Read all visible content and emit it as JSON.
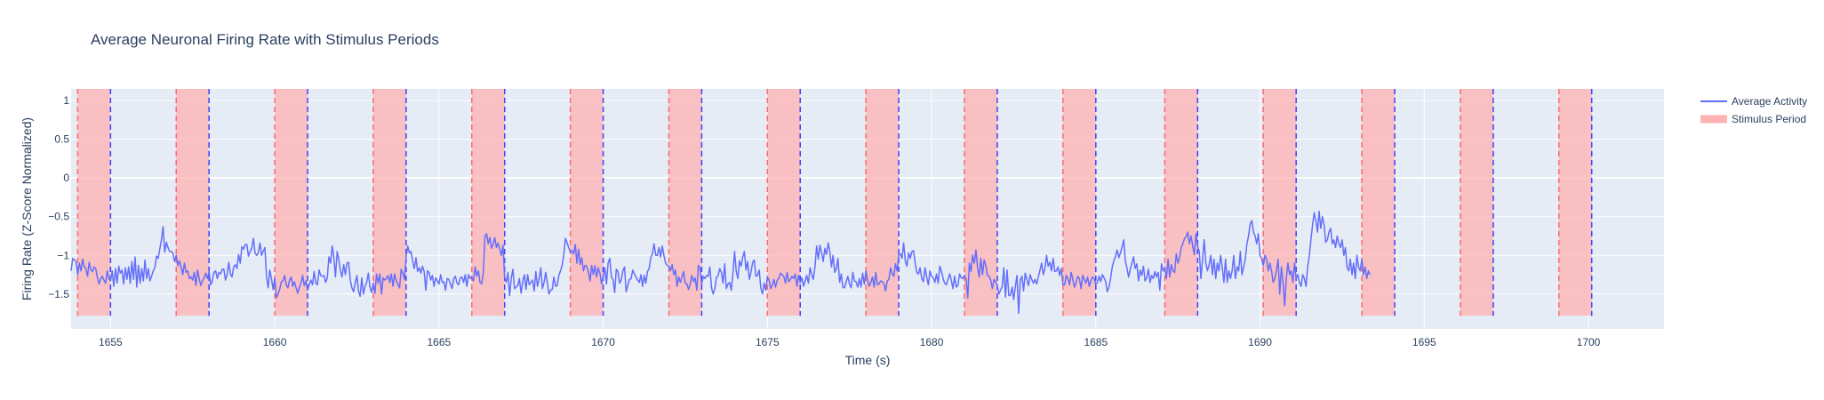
{
  "colors": {
    "plot_bg": "#e5ecf6",
    "grid": "#ffffff",
    "line": "#636efa",
    "stimulus_fill": "#ffb2b2",
    "onset_line": "#ff6b6b",
    "offset_line": "#3f3fff",
    "text": "#2a3f5f"
  },
  "chart_data": {
    "type": "line",
    "title": "Average Neuronal Firing Rate with Stimulus Periods",
    "xlabel": "Time (s)",
    "ylabel": "Firing Rate (Z-Score Normalized)",
    "xlim": [
      1653.8,
      1702.3
    ],
    "ylim": [
      -1.95,
      1.15
    ],
    "x_ticks": [
      1655,
      1660,
      1665,
      1670,
      1675,
      1680,
      1685,
      1690,
      1695,
      1700
    ],
    "y_ticks": [
      -1.5,
      -1,
      -0.5,
      0,
      0.5,
      1
    ],
    "y_tick_labels": [
      "−1.5",
      "−1",
      "−0.5",
      "0",
      "0.5",
      "1"
    ],
    "grid": true,
    "legend_position": "top-right",
    "legend": [
      "Average Activity",
      "Stimulus Period"
    ],
    "stimulus_periods": [
      [
        1654.0,
        1655.0
      ],
      [
        1657.0,
        1658.0
      ],
      [
        1660.0,
        1661.0
      ],
      [
        1663.0,
        1664.0
      ],
      [
        1666.0,
        1667.0
      ],
      [
        1669.0,
        1670.0
      ],
      [
        1672.0,
        1673.0
      ],
      [
        1675.0,
        1676.0
      ],
      [
        1678.0,
        1679.0
      ],
      [
        1681.0,
        1682.0
      ],
      [
        1684.0,
        1685.0
      ],
      [
        1687.1,
        1688.1
      ],
      [
        1690.1,
        1691.1
      ],
      [
        1693.1,
        1694.1
      ],
      [
        1696.1,
        1697.1
      ],
      [
        1699.1,
        1700.1
      ]
    ],
    "stimulus_y_range": [
      -1.78,
      1.15
    ],
    "series": [
      {
        "name": "Average Activity",
        "x_start": 1653.8,
        "x_step": 0.05,
        "values": [
          -1.2,
          -1.04,
          -1.06,
          -1.08,
          -1.25,
          -1.1,
          -1.2,
          -1.05,
          -1.15,
          -1.17,
          -1.27,
          -1.09,
          -1.19,
          -1.21,
          -1.15,
          -1.17,
          -1.29,
          -1.37,
          -1.3,
          -1.27,
          -1.32,
          -1.36,
          -1.2,
          -1.3,
          -1.33,
          -1.2,
          -1.4,
          -1.17,
          -1.36,
          -1.14,
          -1.23,
          -1.19,
          -1.37,
          -1.16,
          -1.31,
          -1.15,
          -1.36,
          -1.08,
          -1.31,
          -1.02,
          -1.41,
          -1.13,
          -1.36,
          -1.17,
          -1.33,
          -1.06,
          -1.3,
          -1.17,
          -1.33,
          -1.27,
          -1.2,
          -1.16,
          -1.01,
          -1.04,
          -0.92,
          -0.8,
          -0.63,
          -0.96,
          -0.83,
          -0.9,
          -0.95,
          -0.95,
          -0.97,
          -1.08,
          -1.0,
          -1.13,
          -1.07,
          -1.16,
          -1.25,
          -1.1,
          -1.22,
          -1.2,
          -1.3,
          -1.28,
          -1.32,
          -1.22,
          -1.39,
          -1.19,
          -1.3,
          -1.39,
          -1.33,
          -1.29,
          -1.23,
          -1.3,
          -1.21,
          -1.38,
          -1.33,
          -1.22,
          -1.2,
          -1.3,
          -1.22,
          -1.24,
          -1.18,
          -1.18,
          -1.32,
          -1.25,
          -1.09,
          -1.24,
          -1.28,
          -1.15,
          -1.12,
          -1.17,
          -0.99,
          -1.1,
          -0.89,
          -0.92,
          -0.86,
          -0.86,
          -1.01,
          -0.95,
          -0.91,
          -0.78,
          -0.97,
          -1.0,
          -0.97,
          -0.84,
          -1.0,
          -0.95,
          -0.9,
          -1.27,
          -1.42,
          -1.19,
          -1.3,
          -1.44,
          -1.3,
          -1.55,
          -1.5,
          -1.44,
          -1.34,
          -1.33,
          -1.26,
          -1.38,
          -1.42,
          -1.32,
          -1.28,
          -1.4,
          -1.34,
          -1.42,
          -1.49,
          -1.41,
          -1.36,
          -1.26,
          -1.39,
          -1.33,
          -1.45,
          -1.38,
          -1.32,
          -1.38,
          -1.21,
          -1.36,
          -1.38,
          -1.19,
          -1.26,
          -1.27,
          -1.26,
          -1.35,
          -1.29,
          -1.02,
          -1.1,
          -0.88,
          -1.02,
          -1.28,
          -0.95,
          -1.05,
          -1.2,
          -1.28,
          -1.12,
          -1.25,
          -1.1,
          -1.09,
          -1.32,
          -1.42,
          -1.47,
          -1.36,
          -1.26,
          -1.46,
          -1.53,
          -1.29,
          -1.5,
          -1.4,
          -1.35,
          -1.23,
          -1.41,
          -1.48,
          -1.36,
          -1.49,
          -1.24,
          -1.36,
          -1.24,
          -1.5,
          -1.29,
          -1.32,
          -1.3,
          -1.26,
          -1.35,
          -1.24,
          -1.4,
          -1.24,
          -1.33,
          -1.37,
          -1.42,
          -1.18,
          -1.23,
          -1.31,
          -1.02,
          -0.88,
          -0.97,
          -0.95,
          -1.08,
          -1.17,
          -1.03,
          -1.21,
          -1.16,
          -1.23,
          -1.14,
          -1.21,
          -1.45,
          -1.2,
          -1.22,
          -1.32,
          -1.26,
          -1.4,
          -1.29,
          -1.33,
          -1.37,
          -1.25,
          -1.35,
          -1.34,
          -1.45,
          -1.3,
          -1.31,
          -1.37,
          -1.43,
          -1.3,
          -1.27,
          -1.36,
          -1.38,
          -1.29,
          -1.28,
          -1.35,
          -1.25,
          -1.4,
          -1.25,
          -1.3,
          -1.28,
          -1.33,
          -1.15,
          -1.27,
          -1.2,
          -1.35,
          -1.37,
          -1.23,
          -0.75,
          -0.72,
          -0.85,
          -0.77,
          -0.91,
          -0.86,
          -0.77,
          -0.9,
          -0.84,
          -0.92,
          -1.0,
          -0.87,
          -1.28,
          -1.35,
          -1.22,
          -1.52,
          -1.3,
          -1.18,
          -1.43,
          -1.41,
          -1.39,
          -1.3,
          -1.49,
          -1.34,
          -1.25,
          -1.44,
          -1.25,
          -1.38,
          -1.35,
          -1.32,
          -1.46,
          -1.21,
          -1.4,
          -1.3,
          -1.16,
          -1.43,
          -1.35,
          -1.22,
          -1.36,
          -1.5,
          -1.45,
          -1.44,
          -1.28,
          -1.4,
          -1.39,
          -1.26,
          -1.2,
          -1.13,
          -1.0,
          -0.78,
          -0.84,
          -0.9,
          -0.96,
          -0.94,
          -0.98,
          -0.86,
          -1.1,
          -0.92,
          -1.12,
          -1.03,
          -1.2,
          -1.13,
          -1.14,
          -1.21,
          -1.33,
          -1.13,
          -1.25,
          -1.13,
          -1.28,
          -1.16,
          -1.23,
          -1.37,
          -1.28,
          -1.16,
          -1.37,
          -1.1,
          -1.04,
          -1.28,
          -1.31,
          -1.48,
          -1.18,
          -1.21,
          -1.36,
          -1.32,
          -1.2,
          -1.15,
          -1.47,
          -1.39,
          -1.31,
          -1.3,
          -1.19,
          -1.24,
          -1.28,
          -1.32,
          -1.35,
          -1.25,
          -1.4,
          -1.26,
          -1.36,
          -1.21,
          -1.17,
          -1.03,
          -0.98,
          -0.85,
          -1.0,
          -1.0,
          -0.9,
          -1.02,
          -0.88,
          -1.0,
          -1.1,
          -1.13,
          -1.14,
          -1.2,
          -1.12,
          -1.25,
          -1.19,
          -1.4,
          -1.28,
          -1.35,
          -1.28,
          -1.21,
          -1.36,
          -1.37,
          -1.44,
          -1.37,
          -1.26,
          -1.34,
          -1.29,
          -1.45,
          -1.13,
          -1.17,
          -1.37,
          -1.27,
          -1.3,
          -1.26,
          -1.27,
          -1.15,
          -1.42,
          -1.5,
          -1.43,
          -1.29,
          -1.26,
          -1.17,
          -1.22,
          -1.36,
          -1.11,
          -1.43,
          -1.37,
          -1.35,
          -1.45,
          -1.24,
          -0.95,
          -1.2,
          -1.3,
          -1.07,
          -1.14,
          -1.02,
          -0.95,
          -1.19,
          -1.08,
          -1.31,
          -1.22,
          -1.09,
          -1.06,
          -1.27,
          -1.26,
          -1.19,
          -1.42,
          -1.5,
          -1.36,
          -1.45,
          -1.28,
          -1.32,
          -1.43,
          -1.39,
          -1.31,
          -1.41,
          -1.32,
          -1.3,
          -1.23,
          -1.25,
          -1.27,
          -1.36,
          -1.22,
          -1.34,
          -1.31,
          -1.27,
          -1.3,
          -1.24,
          -1.4,
          -1.26,
          -1.35,
          -1.29,
          -1.4,
          -1.33,
          -1.26,
          -1.36,
          -1.16,
          -1.25,
          -1.31,
          -1.14,
          -0.88,
          -1.05,
          -0.87,
          -0.97,
          -1.08,
          -0.91,
          -0.99,
          -0.84,
          -0.95,
          -1.15,
          -1.0,
          -1.22,
          -1.17,
          -1.04,
          -1.35,
          -1.24,
          -1.41,
          -1.42,
          -1.34,
          -1.27,
          -1.37,
          -1.42,
          -1.22,
          -1.33,
          -1.34,
          -1.41,
          -1.3,
          -1.41,
          -1.23,
          -1.37,
          -1.2,
          -1.32,
          -1.4,
          -1.35,
          -1.28,
          -1.41,
          -1.22,
          -1.38,
          -1.37,
          -1.33,
          -1.34,
          -1.37,
          -1.46,
          -1.33,
          -1.31,
          -1.16,
          -1.24,
          -1.27,
          -1.11,
          -1.2,
          -1.0,
          -0.98,
          -1.04,
          -0.84,
          -1.08,
          -1.14,
          -0.97,
          -1.04,
          -0.95,
          -0.94,
          -1.1,
          -1.22,
          -1.24,
          -1.16,
          -1.3,
          -1.34,
          -1.16,
          -1.28,
          -1.38,
          -1.2,
          -1.27,
          -1.29,
          -1.35,
          -1.24,
          -1.36,
          -1.14,
          -1.2,
          -1.3,
          -1.36,
          -1.38,
          -1.31,
          -1.24,
          -1.32,
          -1.43,
          -1.27,
          -1.41,
          -1.39,
          -1.24,
          -1.29,
          -1.3,
          -1.26,
          -1.3,
          -1.55,
          -1.1,
          -1.21,
          -1.0,
          -1.1,
          -0.93,
          -1.16,
          -1.28,
          -1.04,
          -1.25,
          -1.06,
          -1.13,
          -1.26,
          -1.27,
          -1.32,
          -1.43,
          -1.31,
          -1.34,
          -1.39,
          -1.5,
          -1.45,
          -1.4,
          -1.16,
          -1.54,
          -1.19,
          -1.52,
          -1.52,
          -1.41,
          -1.57,
          -1.4,
          -1.26,
          -1.75,
          -1.32,
          -1.27,
          -1.46,
          -1.23,
          -1.31,
          -1.39,
          -1.25,
          -1.31,
          -1.36,
          -1.31,
          -1.37,
          -1.28,
          -1.19,
          -1.1,
          -1.25,
          -1.17,
          -1.0,
          -1.14,
          -1.09,
          -1.2,
          -1.04,
          -1.21,
          -1.2,
          -1.15,
          -1.26,
          -1.17,
          -1.38,
          -1.38,
          -1.26,
          -1.3,
          -1.38,
          -1.22,
          -1.31,
          -1.41,
          -1.35,
          -1.27,
          -1.3,
          -1.43,
          -1.26,
          -1.31,
          -1.36,
          -1.28,
          -1.4,
          -1.33,
          -1.28,
          -1.3,
          -1.37,
          -1.35,
          -1.27,
          -1.34,
          -1.25,
          -1.29,
          -1.34,
          -1.47,
          -1.41,
          -1.3,
          -1.15,
          -1.07,
          -1.01,
          -0.93,
          -1.03,
          -0.97,
          -0.89,
          -0.8,
          -1.07,
          -1.17,
          -1.28,
          -1.18,
          -1.1,
          -1.02,
          -1.17,
          -1.11,
          -1.33,
          -1.19,
          -1.26,
          -1.14,
          -1.33,
          -1.29,
          -1.18,
          -1.35,
          -1.26,
          -1.3,
          -1.21,
          -1.28,
          -1.22,
          -1.45,
          -1.11,
          -1.2,
          -1.16,
          -1.3,
          -1.05,
          -1.28,
          -1.12,
          -1.2,
          -1.22,
          -0.98,
          -1.1,
          -1.03,
          -0.9,
          -0.85,
          -0.78,
          -0.76,
          -0.7,
          -0.85,
          -0.75,
          -0.88,
          -0.99,
          -0.72,
          -0.88,
          -0.95,
          -1.3,
          -1.05,
          -0.8,
          -1.1,
          -1.2,
          -1.12,
          -1.0,
          -1.25,
          -1.05,
          -1.3,
          -1.1,
          -1.2,
          -1.0,
          -1.15,
          -1.35,
          -1.05,
          -1.35,
          -1.2,
          -1.3,
          -1.2,
          -1.0,
          -1.3,
          -1.15,
          -1.2,
          -0.95,
          -1.25,
          -1.15,
          -1.05,
          -0.85,
          -0.75,
          -0.6,
          -0.55,
          -0.7,
          -0.75,
          -0.85,
          -0.72,
          -1.0,
          -1.05,
          -1.13,
          -1.0,
          -1.05,
          -1.2,
          -1.1,
          -1.2,
          -1.35,
          -1.3,
          -1.2,
          -1.05,
          -1.5,
          -1.15,
          -1.35,
          -1.65,
          -1.3,
          -1.1,
          -1.25,
          -1.2,
          -1.35,
          -1.1,
          -1.3,
          -1.25,
          -1.35,
          -1.4,
          -1.25,
          -1.3,
          -1.4,
          -1.15,
          -1.0,
          -0.8,
          -0.6,
          -0.45,
          -0.55,
          -0.7,
          -0.43,
          -0.65,
          -0.5,
          -0.6,
          -0.83,
          -0.8,
          -0.7,
          -0.65,
          -0.85,
          -0.8,
          -0.9,
          -0.75,
          -0.85,
          -0.9,
          -0.8,
          -1.0,
          -0.9,
          -1.15,
          -1.2,
          -1.05,
          -1.25,
          -1.1,
          -1.3,
          -1.0,
          -1.15,
          -1.2,
          -1.05,
          -1.25,
          -1.15,
          -1.3,
          -1.2,
          -1.25
        ]
      }
    ]
  }
}
